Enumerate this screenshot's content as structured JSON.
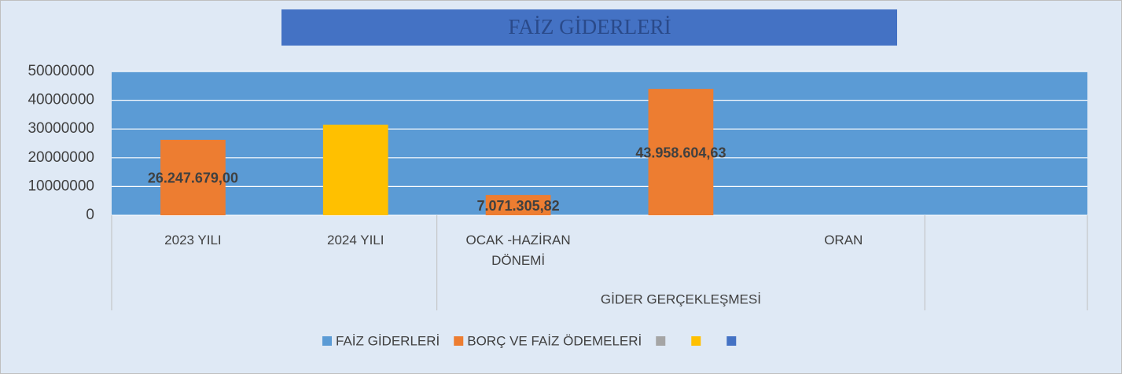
{
  "chart_data": {
    "type": "bar",
    "title": "FAİZ GİDERLERİ",
    "categories": [
      "2023 YILI",
      "2024 YILI",
      "OCAK -HAZİRAN DÖNEMİ",
      null,
      "ORAN",
      null
    ],
    "category_groups": [
      {
        "label": "GİDER GERÇEKLEŞMESİ",
        "start": 2,
        "end": 4
      }
    ],
    "series": [
      {
        "name": "FAİZ GİDERLERİ",
        "color": "#5b9bd5",
        "values": [
          null,
          null,
          null,
          null,
          null,
          null
        ]
      },
      {
        "name": "BORÇ VE FAİZ ÖDEMELERİ",
        "color": "#ed7d31",
        "values": [
          26247679,
          null,
          7071305.82,
          43958604.63,
          null,
          null
        ],
        "value_labels": [
          "26.247.679,00",
          null,
          "7.071.305,82",
          "43.958.604,63",
          null,
          null
        ]
      },
      {
        "name": null,
        "color": "#a5a5a5",
        "values": [
          null,
          null,
          null,
          null,
          null,
          null
        ]
      },
      {
        "name": null,
        "color": "#ffc000",
        "values": [
          null,
          31500000,
          null,
          null,
          null,
          null
        ]
      },
      {
        "name": null,
        "color": "#4472c4",
        "values": [
          null,
          null,
          null,
          null,
          null,
          null
        ]
      }
    ],
    "ylim": [
      0,
      50000000
    ],
    "yticks": [
      0,
      10000000,
      20000000,
      30000000,
      40000000,
      50000000
    ],
    "grid": true,
    "legend": "bottom",
    "plot_color": "#5b9bd5"
  }
}
